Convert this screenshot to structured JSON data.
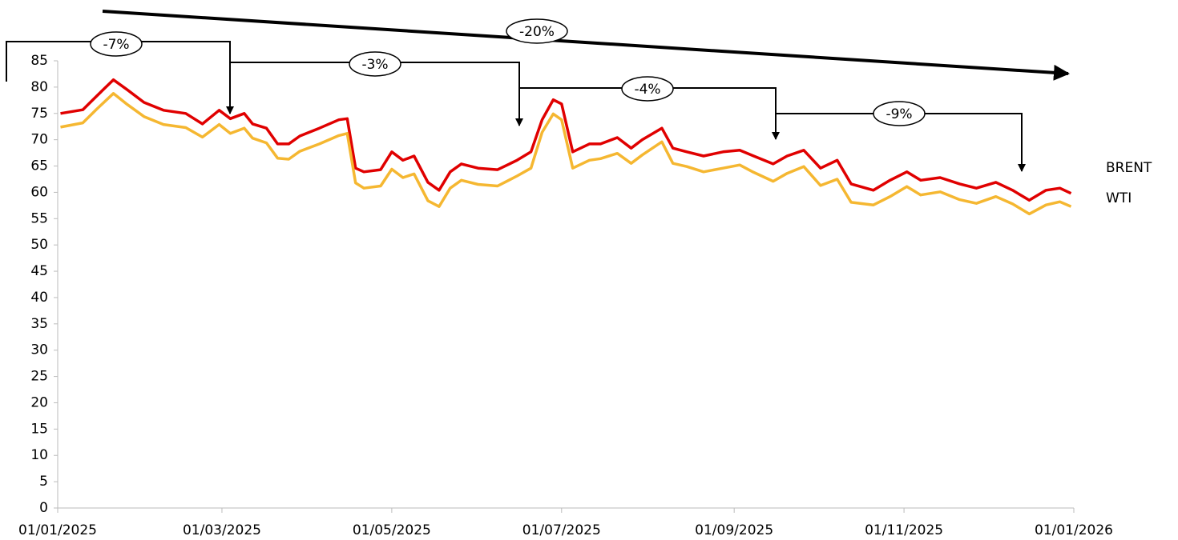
{
  "chart_data": {
    "type": "line",
    "x": [
      "02/01/2025",
      "10/01/2025",
      "15/01/2025",
      "21/01/2025",
      "26/01/2025",
      "01/02/2025",
      "08/02/2025",
      "16/02/2025",
      "22/02/2025",
      "28/02/2025",
      "04/03/2025",
      "09/03/2025",
      "12/03/2025",
      "17/03/2025",
      "21/03/2025",
      "25/03/2025",
      "29/03/2025",
      "05/04/2025",
      "12/04/2025",
      "15/04/2025",
      "18/04/2025",
      "21/04/2025",
      "27/04/2025",
      "01/05/2025",
      "05/05/2025",
      "09/05/2025",
      "14/05/2025",
      "18/05/2025",
      "22/05/2025",
      "26/05/2025",
      "01/06/2025",
      "08/06/2025",
      "15/06/2025",
      "20/06/2025",
      "24/06/2025",
      "28/06/2025",
      "01/07/2025",
      "05/07/2025",
      "11/07/2025",
      "15/07/2025",
      "21/07/2025",
      "26/07/2025",
      "30/07/2025",
      "06/08/2025",
      "10/08/2025",
      "15/08/2025",
      "21/08/2025",
      "28/08/2025",
      "03/09/2025",
      "08/09/2025",
      "15/09/2025",
      "20/09/2025",
      "26/09/2025",
      "02/10/2025",
      "08/10/2025",
      "13/10/2025",
      "21/10/2025",
      "27/10/2025",
      "02/11/2025",
      "07/11/2025",
      "14/11/2025",
      "21/11/2025",
      "27/11/2025",
      "04/12/2025",
      "10/12/2025",
      "16/12/2025",
      "22/12/2025",
      "27/12/2025",
      "31/12/2025"
    ],
    "series": [
      {
        "name": "BRENT",
        "color": "#e00000",
        "values": [
          75,
          75.7,
          78.3,
          81.4,
          79.5,
          77.1,
          75.6,
          75,
          73,
          75.6,
          74,
          75,
          73,
          72.2,
          69.2,
          69.2,
          70.7,
          72.2,
          73.8,
          74,
          64.6,
          63.9,
          64.3,
          67.7,
          66.1,
          66.9,
          61.9,
          60.4,
          63.9,
          65.4,
          64.6,
          64.3,
          66.1,
          67.7,
          73.8,
          77.6,
          76.8,
          67.7,
          69.2,
          69.2,
          70.4,
          68.4,
          70,
          72.2,
          68.4,
          67.7,
          66.9,
          67.7,
          68,
          66.9,
          65.4,
          66.9,
          68,
          64.6,
          66.1,
          61.6,
          60.4,
          62.3,
          63.9,
          62.3,
          62.8,
          61.6,
          60.8,
          61.9,
          60.4,
          58.5,
          60.4,
          60.8,
          59.8
        ]
      },
      {
        "name": "WTI",
        "color": "#f5b731",
        "values": [
          72.4,
          73.2,
          75.8,
          78.8,
          76.7,
          74.4,
          72.9,
          72.3,
          70.5,
          72.9,
          71.2,
          72.2,
          70.3,
          69.4,
          66.5,
          66.3,
          67.8,
          69.2,
          70.8,
          71.2,
          61.8,
          60.8,
          61.2,
          64.4,
          62.8,
          63.5,
          58.4,
          57.3,
          60.8,
          62.3,
          61.5,
          61.2,
          63.1,
          64.6,
          71.4,
          74.9,
          73.8,
          64.6,
          66.1,
          66.4,
          67.4,
          65.5,
          67.1,
          69.6,
          65.5,
          64.9,
          63.9,
          64.6,
          65.2,
          63.8,
          62.1,
          63.6,
          64.9,
          61.3,
          62.5,
          58.1,
          57.6,
          59.2,
          61.1,
          59.5,
          60.1,
          58.6,
          57.9,
          59.2,
          57.8,
          55.9,
          57.6,
          58.2,
          57.3
        ]
      }
    ],
    "xlim": [
      "01/01/2025",
      "01/01/2026"
    ],
    "xticks": [
      "01/01/2025",
      "01/03/2025",
      "01/05/2025",
      "01/07/2025",
      "01/09/2025",
      "01/11/2025",
      "01/01/2026"
    ],
    "ylim": [
      0,
      85
    ],
    "yticks": [
      0,
      5,
      10,
      15,
      20,
      25,
      30,
      35,
      40,
      45,
      50,
      55,
      60,
      65,
      70,
      75,
      80,
      85
    ],
    "annotations": [
      "-7%",
      "-3%",
      "-4%",
      "-9%",
      "-20%"
    ]
  }
}
